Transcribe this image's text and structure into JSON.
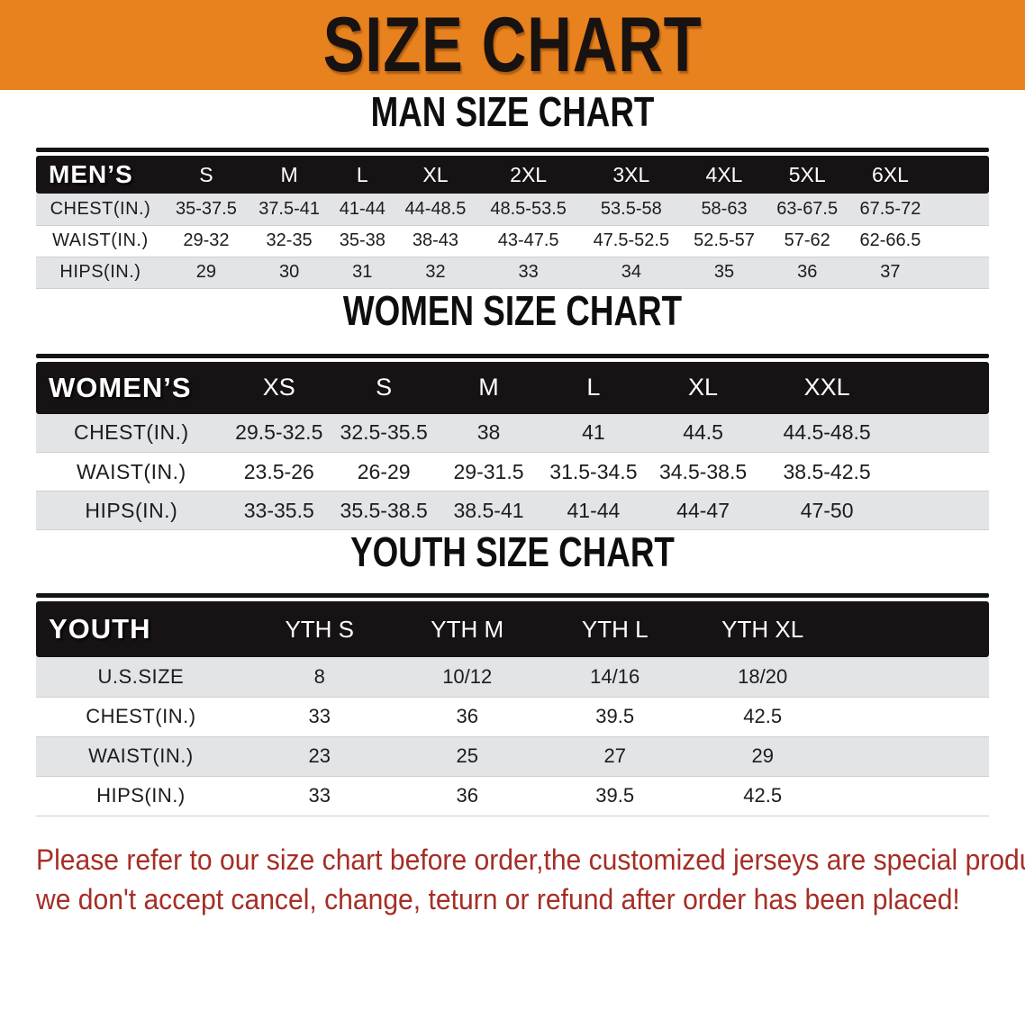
{
  "banner": {
    "title": "SIZE CHART"
  },
  "sections": [
    {
      "heading": "MAN SIZE CHART",
      "label": "MEN’S",
      "columns": [
        "S",
        "M",
        "L",
        "XL",
        "2XL",
        "3XL",
        "4XL",
        "5XL",
        "6XL"
      ],
      "rows": [
        {
          "label": "CHEST(IN.)",
          "values": [
            "35-37.5",
            "37.5-41",
            "41-44",
            "44-48.5",
            "48.5-53.5",
            "53.5-58",
            "58-63",
            "63-67.5",
            "67.5-72"
          ]
        },
        {
          "label": "WAIST(IN.)",
          "values": [
            "29-32",
            "32-35",
            "35-38",
            "38-43",
            "43-47.5",
            "47.5-52.5",
            "52.5-57",
            "57-62",
            "62-66.5"
          ]
        },
        {
          "label": "HIPS(IN.)",
          "values": [
            "29",
            "30",
            "31",
            "32",
            "33",
            "34",
            "35",
            "36",
            "37"
          ]
        }
      ]
    },
    {
      "heading": "WOMEN SIZE CHART",
      "label": "WOMEN’S",
      "columns": [
        "XS",
        "S",
        "M",
        "L",
        "XL",
        "XXL"
      ],
      "rows": [
        {
          "label": "CHEST(IN.)",
          "values": [
            "29.5-32.5",
            "32.5-35.5",
            "38",
            "41",
            "44.5",
            "44.5-48.5"
          ]
        },
        {
          "label": "WAIST(IN.)",
          "values": [
            "23.5-26",
            "26-29",
            "29-31.5",
            "31.5-34.5",
            "34.5-38.5",
            "38.5-42.5"
          ]
        },
        {
          "label": "HIPS(IN.)",
          "values": [
            "33-35.5",
            "35.5-38.5",
            "38.5-41",
            "41-44",
            "44-47",
            "47-50"
          ]
        }
      ]
    },
    {
      "heading": "YOUTH SIZE CHART",
      "label": "YOUTH",
      "columns": [
        "YTH S",
        "YTH M",
        "YTH L",
        "YTH XL"
      ],
      "rows": [
        {
          "label": "U.S.SIZE",
          "values": [
            "8",
            "10/12",
            "14/16",
            "18/20"
          ]
        },
        {
          "label": "CHEST(IN.)",
          "values": [
            "33",
            "36",
            "39.5",
            "42.5"
          ]
        },
        {
          "label": "WAIST(IN.)",
          "values": [
            "23",
            "25",
            "27",
            "29"
          ]
        },
        {
          "label": "HIPS(IN.)",
          "values": [
            "33",
            "36",
            "39.5",
            "42.5"
          ]
        }
      ]
    }
  ],
  "footer": {
    "line1": "Please refer to our size chart before order,the customized jerseys are special products,",
    "line2": "we don't accept cancel, change, teturn or refund after order has been placed!"
  },
  "colors": {
    "banner-bg": "#E8821E",
    "bar-bg": "#171314",
    "row-gray": "#E3E4E6",
    "note-red": "#A52E26"
  }
}
